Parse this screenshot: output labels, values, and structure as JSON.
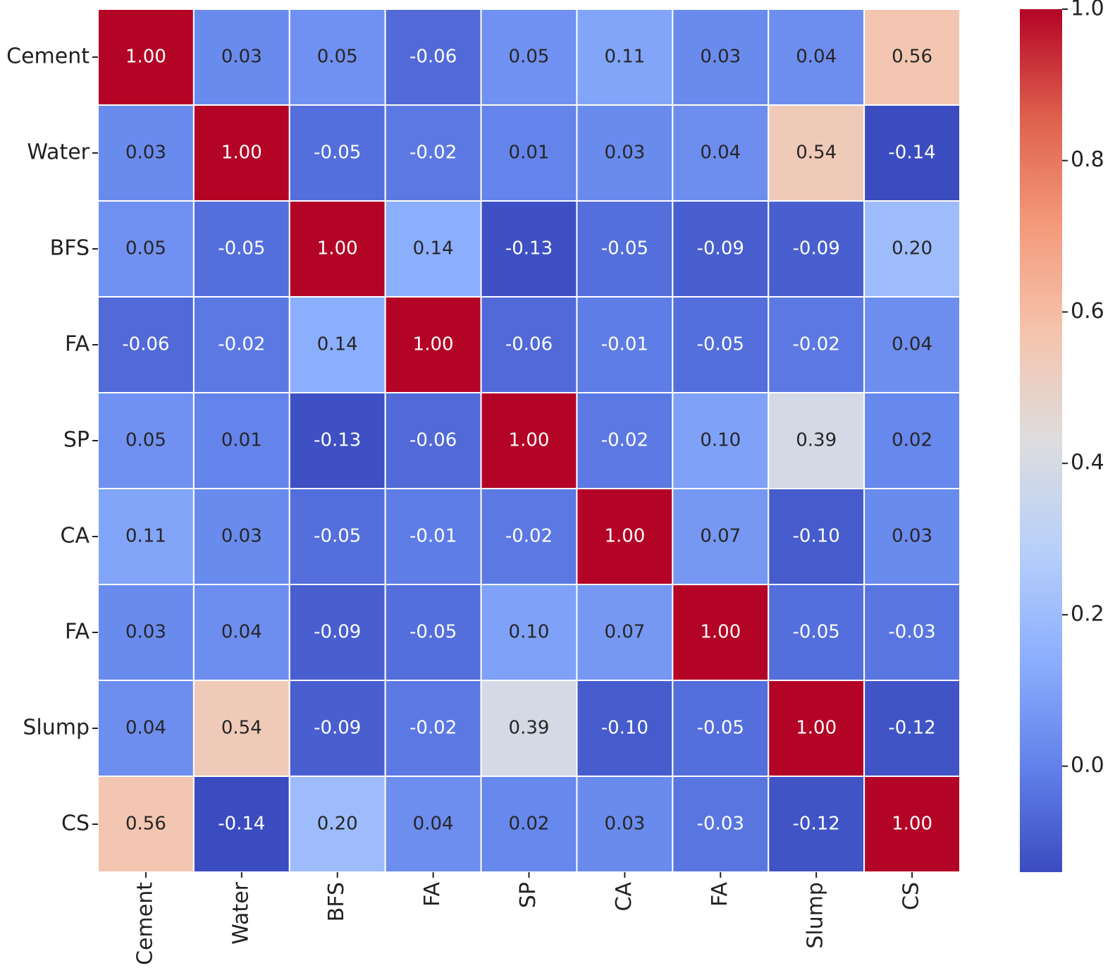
{
  "chart_data": {
    "type": "heatmap",
    "x_categories": [
      "Cement",
      "Water",
      "BFS",
      "FA",
      "SP",
      "CA",
      "FA",
      "Slump",
      "CS"
    ],
    "y_categories": [
      "Cement",
      "Water",
      "BFS",
      "FA",
      "SP",
      "CA",
      "FA",
      "Slump",
      "CS"
    ],
    "values": [
      [
        1.0,
        0.03,
        0.05,
        -0.06,
        0.05,
        0.11,
        0.03,
        0.04,
        0.56
      ],
      [
        0.03,
        1.0,
        -0.05,
        -0.02,
        0.01,
        0.03,
        0.04,
        0.54,
        -0.14
      ],
      [
        0.05,
        -0.05,
        1.0,
        0.14,
        -0.13,
        -0.05,
        -0.09,
        -0.09,
        0.2
      ],
      [
        -0.06,
        -0.02,
        0.14,
        1.0,
        -0.06,
        -0.01,
        -0.05,
        -0.02,
        0.04
      ],
      [
        0.05,
        0.01,
        -0.13,
        -0.06,
        1.0,
        -0.02,
        0.1,
        0.39,
        0.02
      ],
      [
        0.11,
        0.03,
        -0.05,
        -0.01,
        -0.02,
        1.0,
        0.07,
        -0.1,
        0.03
      ],
      [
        0.03,
        0.04,
        -0.09,
        -0.05,
        0.1,
        0.07,
        1.0,
        -0.05,
        -0.03
      ],
      [
        0.04,
        0.54,
        -0.09,
        -0.02,
        0.39,
        -0.1,
        -0.05,
        1.0,
        -0.12
      ],
      [
        0.56,
        -0.14,
        0.2,
        0.04,
        0.02,
        0.03,
        -0.03,
        -0.12,
        1.0
      ]
    ],
    "value_labels": [
      [
        "1.00",
        "0.03",
        "0.05",
        "-0.06",
        "0.05",
        "0.11",
        "0.03",
        "0.04",
        "0.56"
      ],
      [
        "0.03",
        "1.00",
        "-0.05",
        "-0.02",
        "0.01",
        "0.03",
        "0.04",
        "0.54",
        "-0.14"
      ],
      [
        "0.05",
        "-0.05",
        "1.00",
        "0.14",
        "-0.13",
        "-0.05",
        "-0.09",
        "-0.09",
        "0.20"
      ],
      [
        "-0.06",
        "-0.02",
        "0.14",
        "1.00",
        "-0.06",
        "-0.01",
        "-0.05",
        "-0.02",
        "0.04"
      ],
      [
        "0.05",
        "0.01",
        "-0.13",
        "-0.06",
        "1.00",
        "-0.02",
        "0.10",
        "0.39",
        "0.02"
      ],
      [
        "0.11",
        "0.03",
        "-0.05",
        "-0.01",
        "-0.02",
        "1.00",
        "0.07",
        "-0.10",
        "0.03"
      ],
      [
        "0.03",
        "0.04",
        "-0.09",
        "-0.05",
        "0.10",
        "0.07",
        "1.00",
        "-0.05",
        "-0.03"
      ],
      [
        "0.04",
        "0.54",
        "-0.09",
        "-0.02",
        "0.39",
        "-0.10",
        "-0.05",
        "1.00",
        "-0.12"
      ],
      [
        "0.56",
        "-0.14",
        "0.20",
        "0.04",
        "0.02",
        "0.03",
        "-0.03",
        "-0.12",
        "1.00"
      ]
    ],
    "colormap": "coolwarm",
    "clim": [
      -0.14,
      1.0
    ],
    "colorbar_ticks": [
      {
        "value": 0.0,
        "label": "0.0"
      },
      {
        "value": 0.2,
        "label": "0.2"
      },
      {
        "value": 0.4,
        "label": "0.4"
      },
      {
        "value": 0.6,
        "label": "0.6"
      },
      {
        "value": 0.8,
        "label": "0.8"
      },
      {
        "value": 1.0,
        "label": "1.0"
      }
    ]
  }
}
